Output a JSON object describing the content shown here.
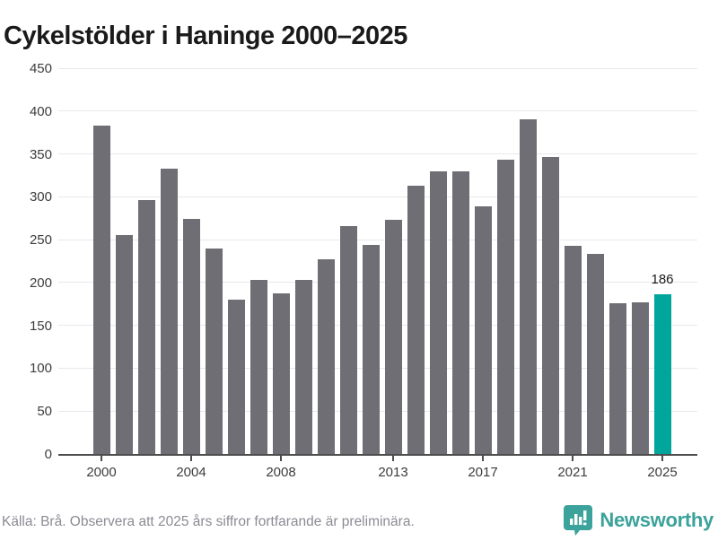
{
  "title": "Cykelstölder i Haninge 2000–2025",
  "chart_data": {
    "type": "bar",
    "title": "Cykelstölder i Haninge 2000–2025",
    "categories": [
      2000,
      2001,
      2002,
      2003,
      2004,
      2005,
      2006,
      2007,
      2008,
      2009,
      2010,
      2011,
      2012,
      2013,
      2014,
      2015,
      2016,
      2017,
      2018,
      2019,
      2020,
      2021,
      2022,
      2023,
      2024,
      2025
    ],
    "values": [
      383,
      255,
      296,
      333,
      274,
      240,
      180,
      203,
      187,
      203,
      227,
      266,
      244,
      273,
      313,
      330,
      330,
      289,
      343,
      390,
      346,
      243,
      233,
      176,
      177,
      186
    ],
    "xlabel": "",
    "ylabel": "",
    "ylim": [
      0,
      450
    ],
    "yticks": [
      0,
      50,
      100,
      150,
      200,
      250,
      300,
      350,
      400,
      450
    ],
    "xtick_labels": [
      "2000",
      "2004",
      "2008",
      "2013",
      "2017",
      "2021",
      "2025"
    ],
    "grid": "horizontal",
    "legend_position": "none",
    "bar_color": "#6e6e74",
    "highlight_color": "#00a69c",
    "highlight_category": 2025,
    "data_labels": [
      {
        "category": 2025,
        "text": "186"
      }
    ]
  },
  "footer": {
    "source_note": "Källa: Brå. Observera att 2025 års siffror fortfarande är preliminära.",
    "brand_name": "Newsworthy"
  },
  "colors": {
    "background": "#ffffff",
    "bar": "#6e6e74",
    "highlight": "#00a69c",
    "gridline": "#e9e9ec",
    "axis": "#4d4d4d",
    "title_text": "#1a1a1a",
    "tick_text": "#3d3d3d",
    "source_text": "#8b8b94",
    "brand_teal": "#3ba39b"
  }
}
